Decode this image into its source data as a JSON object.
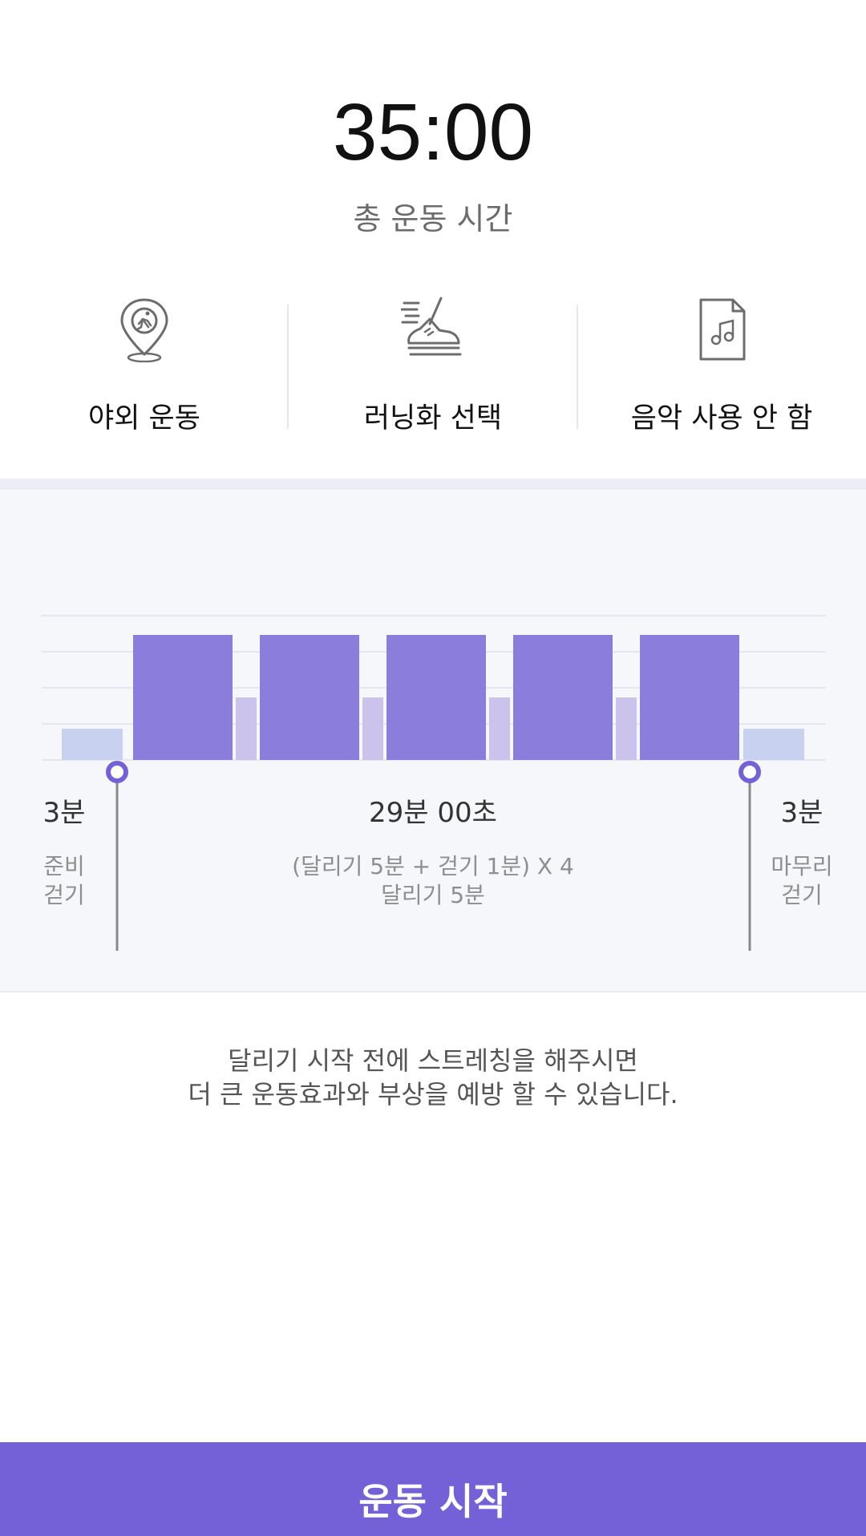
{
  "header": {
    "time": "35:00",
    "label": "총 운동 시간"
  },
  "options": [
    {
      "icon": "location-pin-runner-icon",
      "label": "야외 운동"
    },
    {
      "icon": "running-shoe-icon",
      "label": "러닝화 선택"
    },
    {
      "icon": "music-file-icon",
      "label": "음악 사용 안 함"
    }
  ],
  "colors": {
    "accent": "#7461d8",
    "run_bar": "#8a7ddb",
    "walk_bar": "#cbc3ec",
    "warm_bar": "#c8d2f0",
    "panel_bg": "#f6f7fb"
  },
  "chart_data": {
    "type": "bar",
    "segments": [
      {
        "kind": "warmup",
        "minutes": 3,
        "level": 1
      },
      {
        "kind": "run",
        "minutes": 5,
        "level": 4
      },
      {
        "kind": "walk",
        "minutes": 1,
        "level": 2
      },
      {
        "kind": "run",
        "minutes": 5,
        "level": 4
      },
      {
        "kind": "walk",
        "minutes": 1,
        "level": 2
      },
      {
        "kind": "run",
        "minutes": 5,
        "level": 4
      },
      {
        "kind": "walk",
        "minutes": 1,
        "level": 2
      },
      {
        "kind": "run",
        "minutes": 5,
        "level": 4
      },
      {
        "kind": "walk",
        "minutes": 1,
        "level": 2
      },
      {
        "kind": "run",
        "minutes": 5,
        "level": 4
      },
      {
        "kind": "cooldown",
        "minutes": 3,
        "level": 1
      }
    ],
    "grid": true
  },
  "phases": {
    "warmup": {
      "duration": "3분",
      "name_line1": "준비",
      "name_line2": "걷기"
    },
    "main": {
      "duration": "29분 00초",
      "desc_line1": "(달리기 5분 + 걷기 1분) X 4",
      "desc_line2": "달리기 5분"
    },
    "cooldown": {
      "duration": "3분",
      "name_line1": "마무리",
      "name_line2": "걷기"
    }
  },
  "tip": {
    "line1": "달리기 시작 전에 스트레칭을 해주시면",
    "line2": "더 큰 운동효과와 부상을 예방 할 수 있습니다."
  },
  "start_button": {
    "label": "운동 시작"
  }
}
